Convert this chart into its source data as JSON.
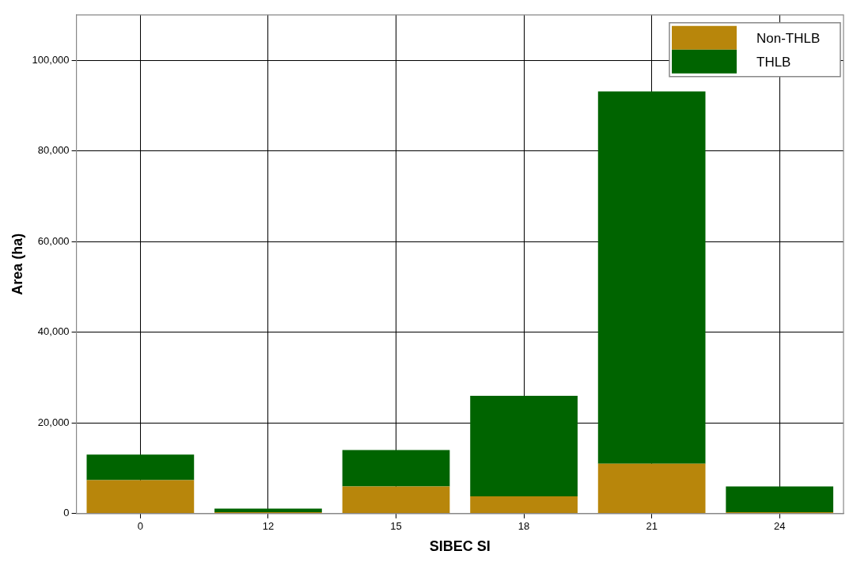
{
  "chart_data": {
    "type": "bar",
    "stacked": true,
    "xlabel": "SIBEC SI",
    "ylabel": "Area (ha)",
    "categories": [
      "0",
      "12",
      "15",
      "18",
      "21",
      "24"
    ],
    "series": [
      {
        "name": "Non-THLB",
        "color": "#b8860b",
        "values": [
          7400,
          300,
          6000,
          3800,
          11000,
          300
        ]
      },
      {
        "name": "THLB",
        "color": "#006400",
        "values": [
          5600,
          800,
          8000,
          22200,
          82100,
          5700
        ]
      }
    ],
    "ylim": [
      0,
      110000
    ],
    "yticks": [
      0,
      {
        "value": 20000,
        "label": "20,000"
      },
      {
        "value": 40000,
        "label": "40,000"
      },
      {
        "value": 60000,
        "label": "60,000"
      },
      {
        "value": 80000,
        "label": "80,000"
      },
      {
        "value": 100000,
        "label": "100,000"
      }
    ],
    "grid": true,
    "legend": "top right"
  }
}
